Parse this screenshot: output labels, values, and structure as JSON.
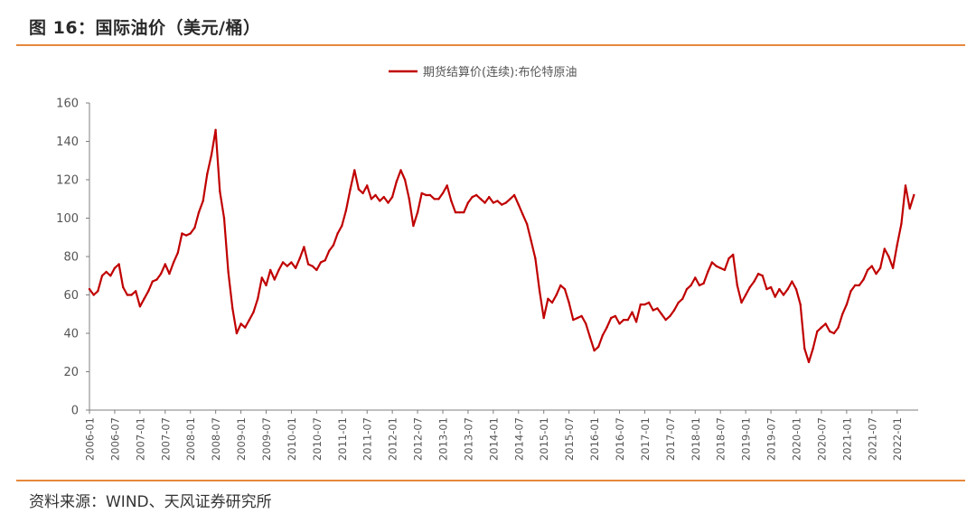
{
  "figure": {
    "title": "图 16：国际油价（美元/桶）",
    "source": "资料来源：WIND、天风证券研究所"
  },
  "chart_data": {
    "type": "line",
    "title": "",
    "xlabel": "",
    "ylabel": "",
    "ylim": [
      0,
      160
    ],
    "yticks": [
      0,
      20,
      40,
      60,
      80,
      100,
      120,
      140,
      160
    ],
    "xlim": [
      "2006-01",
      "2022-05"
    ],
    "xticks": [
      "2006-01",
      "2006-07",
      "2007-01",
      "2007-07",
      "2008-01",
      "2008-07",
      "2009-01",
      "2009-07",
      "2010-01",
      "2010-07",
      "2011-01",
      "2011-07",
      "2012-01",
      "2012-07",
      "2013-01",
      "2013-07",
      "2014-01",
      "2014-07",
      "2015-01",
      "2015-07",
      "2016-01",
      "2016-07",
      "2017-01",
      "2017-07",
      "2018-01",
      "2018-07",
      "2019-01",
      "2019-07",
      "2020-01",
      "2020-07",
      "2021-01",
      "2021-07",
      "2022-01"
    ],
    "legend_position": "top-center",
    "grid": false,
    "series": [
      {
        "name": "期货结算价(连续):布伦特原油",
        "color": "#c00000",
        "points": [
          [
            "2006-01",
            63
          ],
          [
            "2006-02",
            60
          ],
          [
            "2006-03",
            62
          ],
          [
            "2006-04",
            70
          ],
          [
            "2006-05",
            72
          ],
          [
            "2006-06",
            70
          ],
          [
            "2006-07",
            74
          ],
          [
            "2006-08",
            76
          ],
          [
            "2006-09",
            64
          ],
          [
            "2006-10",
            60
          ],
          [
            "2006-11",
            60
          ],
          [
            "2006-12",
            62
          ],
          [
            "2007-01",
            54
          ],
          [
            "2007-02",
            58
          ],
          [
            "2007-03",
            62
          ],
          [
            "2007-04",
            67
          ],
          [
            "2007-05",
            68
          ],
          [
            "2007-06",
            71
          ],
          [
            "2007-07",
            76
          ],
          [
            "2007-08",
            71
          ],
          [
            "2007-09",
            77
          ],
          [
            "2007-10",
            82
          ],
          [
            "2007-11",
            92
          ],
          [
            "2007-12",
            91
          ],
          [
            "2008-01",
            92
          ],
          [
            "2008-02",
            95
          ],
          [
            "2008-03",
            103
          ],
          [
            "2008-04",
            109
          ],
          [
            "2008-05",
            123
          ],
          [
            "2008-06",
            133
          ],
          [
            "2008-07",
            146
          ],
          [
            "2008-08",
            114
          ],
          [
            "2008-09",
            100
          ],
          [
            "2008-10",
            72
          ],
          [
            "2008-11",
            53
          ],
          [
            "2008-12",
            40
          ],
          [
            "2009-01",
            45
          ],
          [
            "2009-02",
            43
          ],
          [
            "2009-03",
            47
          ],
          [
            "2009-04",
            51
          ],
          [
            "2009-05",
            58
          ],
          [
            "2009-06",
            69
          ],
          [
            "2009-07",
            65
          ],
          [
            "2009-08",
            73
          ],
          [
            "2009-09",
            68
          ],
          [
            "2009-10",
            73
          ],
          [
            "2009-11",
            77
          ],
          [
            "2009-12",
            75
          ],
          [
            "2010-01",
            77
          ],
          [
            "2010-02",
            74
          ],
          [
            "2010-03",
            79
          ],
          [
            "2010-04",
            85
          ],
          [
            "2010-05",
            76
          ],
          [
            "2010-06",
            75
          ],
          [
            "2010-07",
            73
          ],
          [
            "2010-08",
            77
          ],
          [
            "2010-09",
            78
          ],
          [
            "2010-10",
            83
          ],
          [
            "2010-11",
            86
          ],
          [
            "2010-12",
            92
          ],
          [
            "2011-01",
            96
          ],
          [
            "2011-02",
            104
          ],
          [
            "2011-03",
            115
          ],
          [
            "2011-04",
            125
          ],
          [
            "2011-05",
            115
          ],
          [
            "2011-06",
            113
          ],
          [
            "2011-07",
            117
          ],
          [
            "2011-08",
            110
          ],
          [
            "2011-09",
            112
          ],
          [
            "2011-10",
            109
          ],
          [
            "2011-11",
            111
          ],
          [
            "2011-12",
            108
          ],
          [
            "2012-01",
            111
          ],
          [
            "2012-02",
            119
          ],
          [
            "2012-03",
            125
          ],
          [
            "2012-04",
            120
          ],
          [
            "2012-05",
            110
          ],
          [
            "2012-06",
            96
          ],
          [
            "2012-07",
            103
          ],
          [
            "2012-08",
            113
          ],
          [
            "2012-09",
            112
          ],
          [
            "2012-10",
            112
          ],
          [
            "2012-11",
            110
          ],
          [
            "2012-12",
            110
          ],
          [
            "2013-01",
            113
          ],
          [
            "2013-02",
            117
          ],
          [
            "2013-03",
            109
          ],
          [
            "2013-04",
            103
          ],
          [
            "2013-05",
            103
          ],
          [
            "2013-06",
            103
          ],
          [
            "2013-07",
            108
          ],
          [
            "2013-08",
            111
          ],
          [
            "2013-09",
            112
          ],
          [
            "2013-10",
            110
          ],
          [
            "2013-11",
            108
          ],
          [
            "2013-12",
            111
          ],
          [
            "2014-01",
            108
          ],
          [
            "2014-02",
            109
          ],
          [
            "2014-03",
            107
          ],
          [
            "2014-04",
            108
          ],
          [
            "2014-05",
            110
          ],
          [
            "2014-06",
            112
          ],
          [
            "2014-07",
            107
          ],
          [
            "2014-08",
            102
          ],
          [
            "2014-09",
            97
          ],
          [
            "2014-10",
            88
          ],
          [
            "2014-11",
            79
          ],
          [
            "2014-12",
            62
          ],
          [
            "2015-01",
            48
          ],
          [
            "2015-02",
            58
          ],
          [
            "2015-03",
            56
          ],
          [
            "2015-04",
            60
          ],
          [
            "2015-05",
            65
          ],
          [
            "2015-06",
            63
          ],
          [
            "2015-07",
            56
          ],
          [
            "2015-08",
            47
          ],
          [
            "2015-09",
            48
          ],
          [
            "2015-10",
            49
          ],
          [
            "2015-11",
            45
          ],
          [
            "2015-12",
            38
          ],
          [
            "2016-01",
            31
          ],
          [
            "2016-02",
            33
          ],
          [
            "2016-03",
            39
          ],
          [
            "2016-04",
            43
          ],
          [
            "2016-05",
            48
          ],
          [
            "2016-06",
            49
          ],
          [
            "2016-07",
            45
          ],
          [
            "2016-08",
            47
          ],
          [
            "2016-09",
            47
          ],
          [
            "2016-10",
            51
          ],
          [
            "2016-11",
            46
          ],
          [
            "2016-12",
            55
          ],
          [
            "2017-01",
            55
          ],
          [
            "2017-02",
            56
          ],
          [
            "2017-03",
            52
          ],
          [
            "2017-04",
            53
          ],
          [
            "2017-05",
            50
          ],
          [
            "2017-06",
            47
          ],
          [
            "2017-07",
            49
          ],
          [
            "2017-08",
            52
          ],
          [
            "2017-09",
            56
          ],
          [
            "2017-10",
            58
          ],
          [
            "2017-11",
            63
          ],
          [
            "2017-12",
            65
          ],
          [
            "2018-01",
            69
          ],
          [
            "2018-02",
            65
          ],
          [
            "2018-03",
            66
          ],
          [
            "2018-04",
            72
          ],
          [
            "2018-05",
            77
          ],
          [
            "2018-06",
            75
          ],
          [
            "2018-07",
            74
          ],
          [
            "2018-08",
            73
          ],
          [
            "2018-09",
            79
          ],
          [
            "2018-10",
            81
          ],
          [
            "2018-11",
            65
          ],
          [
            "2018-12",
            56
          ],
          [
            "2019-01",
            60
          ],
          [
            "2019-02",
            64
          ],
          [
            "2019-03",
            67
          ],
          [
            "2019-04",
            71
          ],
          [
            "2019-05",
            70
          ],
          [
            "2019-06",
            63
          ],
          [
            "2019-07",
            64
          ],
          [
            "2019-08",
            59
          ],
          [
            "2019-09",
            63
          ],
          [
            "2019-10",
            60
          ],
          [
            "2019-11",
            63
          ],
          [
            "2019-12",
            67
          ],
          [
            "2020-01",
            63
          ],
          [
            "2020-02",
            55
          ],
          [
            "2020-03",
            32
          ],
          [
            "2020-04",
            25
          ],
          [
            "2020-05",
            32
          ],
          [
            "2020-06",
            41
          ],
          [
            "2020-07",
            43
          ],
          [
            "2020-08",
            45
          ],
          [
            "2020-09",
            41
          ],
          [
            "2020-10",
            40
          ],
          [
            "2020-11",
            43
          ],
          [
            "2020-12",
            50
          ],
          [
            "2021-01",
            55
          ],
          [
            "2021-02",
            62
          ],
          [
            "2021-03",
            65
          ],
          [
            "2021-04",
            65
          ],
          [
            "2021-05",
            68
          ],
          [
            "2021-06",
            73
          ],
          [
            "2021-07",
            75
          ],
          [
            "2021-08",
            71
          ],
          [
            "2021-09",
            74
          ],
          [
            "2021-10",
            84
          ],
          [
            "2021-11",
            80
          ],
          [
            "2021-12",
            74
          ],
          [
            "2022-01",
            86
          ],
          [
            "2022-02",
            97
          ],
          [
            "2022-03",
            117
          ],
          [
            "2022-04",
            105
          ],
          [
            "2022-05",
            112
          ]
        ]
      }
    ]
  }
}
